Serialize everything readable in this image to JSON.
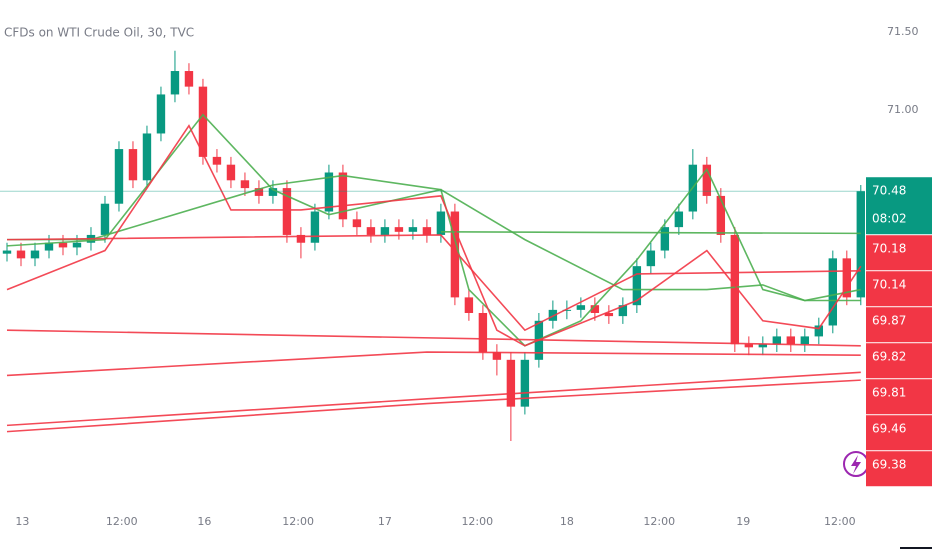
{
  "chart_data": {
    "type": "candlestick",
    "title": "CFDs on WTI Crude Oil, 30, TVC",
    "up_color": "#089981",
    "down_color": "#f23645",
    "xlim": [
      -0.5,
      61.3
    ],
    "ylim": [
      68.47,
      71.705
    ],
    "xticks": [
      {
        "value": 1.1,
        "label": "13"
      },
      {
        "value": 8.2,
        "label": "12:00"
      },
      {
        "value": 14.1,
        "label": "16"
      },
      {
        "value": 20.8,
        "label": "12:00"
      },
      {
        "value": 27,
        "label": "17"
      },
      {
        "value": 33.6,
        "label": "12:00"
      },
      {
        "value": 40,
        "label": "18"
      },
      {
        "value": 46.6,
        "label": "12:00"
      },
      {
        "value": 52.6,
        "label": "19"
      },
      {
        "value": 59.5,
        "label": "12:00"
      }
    ],
    "yticks": [
      {
        "value": 71.5,
        "label": "71.50"
      },
      {
        "value": 71,
        "label": "71.00"
      }
    ],
    "open": [
      70.08,
      70.1,
      70.05,
      70.1,
      70.15,
      70.12,
      70.15,
      70.2,
      70.4,
      70.75,
      70.55,
      70.85,
      71.1,
      71.25,
      71.15,
      70.7,
      70.65,
      70.55,
      70.5,
      70.45,
      70.5,
      70.2,
      70.15,
      70.35,
      70.6,
      70.3,
      70.25,
      70.2,
      70.25,
      70.22,
      70.25,
      70.2,
      70.35,
      69.8,
      69.7,
      69.45,
      69.4,
      69.1,
      69.4,
      69.65,
      69.72,
      69.72,
      69.75,
      69.7,
      69.68,
      69.75,
      70.0,
      70.1,
      70.25,
      70.35,
      70.65,
      70.45,
      70.2,
      69.5,
      69.48,
      69.5,
      69.55,
      69.5,
      69.55,
      69.62,
      70.05,
      69.8
    ],
    "high": [
      70.15,
      70.15,
      70.15,
      70.2,
      70.2,
      70.2,
      70.25,
      70.45,
      70.8,
      70.8,
      70.9,
      71.15,
      71.38,
      71.3,
      71.2,
      70.75,
      70.7,
      70.6,
      70.55,
      70.55,
      70.55,
      70.25,
      70.4,
      70.65,
      70.65,
      70.35,
      70.3,
      70.3,
      70.3,
      70.3,
      70.3,
      70.4,
      70.4,
      69.85,
      69.75,
      69.5,
      69.45,
      69.45,
      69.7,
      69.78,
      69.78,
      69.8,
      69.8,
      69.75,
      69.8,
      70.05,
      70.15,
      70.3,
      70.4,
      70.75,
      70.7,
      70.5,
      70.25,
      69.55,
      69.55,
      69.6,
      69.6,
      69.6,
      69.67,
      70.1,
      70.1,
      70.52
    ],
    "low": [
      70.03,
      70.0,
      70.0,
      70.05,
      70.07,
      70.07,
      70.1,
      70.15,
      70.35,
      70.5,
      70.5,
      70.8,
      71.05,
      71.1,
      70.65,
      70.6,
      70.5,
      70.45,
      70.4,
      70.4,
      70.15,
      70.05,
      70.1,
      70.3,
      70.25,
      70.2,
      70.15,
      70.15,
      70.17,
      70.17,
      70.15,
      70.15,
      69.75,
      69.65,
      69.4,
      69.3,
      68.88,
      69.05,
      69.35,
      69.6,
      69.66,
      69.67,
      69.65,
      69.63,
      69.63,
      69.7,
      69.95,
      70.05,
      70.2,
      70.3,
      70.4,
      70.15,
      69.45,
      69.43,
      69.43,
      69.45,
      69.45,
      69.45,
      69.5,
      69.57,
      69.75,
      69.75
    ],
    "close": [
      70.1,
      70.05,
      70.1,
      70.15,
      70.12,
      70.15,
      70.2,
      70.4,
      70.75,
      70.55,
      70.85,
      71.1,
      71.25,
      71.15,
      70.7,
      70.65,
      70.55,
      70.5,
      70.45,
      70.5,
      70.2,
      70.15,
      70.35,
      70.6,
      70.3,
      70.25,
      70.2,
      70.25,
      70.22,
      70.25,
      70.2,
      70.35,
      69.8,
      69.7,
      69.45,
      69.4,
      69.1,
      69.4,
      69.65,
      69.72,
      69.72,
      69.75,
      69.7,
      69.68,
      69.75,
      70.0,
      70.1,
      70.25,
      70.35,
      70.65,
      70.45,
      70.2,
      69.5,
      69.48,
      69.5,
      69.55,
      69.5,
      69.55,
      69.62,
      70.05,
      69.8,
      70.48
    ],
    "lines": [
      {
        "color": "#4caf50",
        "x": [
          0,
          7,
          14,
          19,
          23,
          31,
          33,
          37,
          41,
          45,
          50,
          54,
          57,
          61
        ],
        "values": [
          70.13,
          70.17,
          70.97,
          70.49,
          70.33,
          70.49,
          69.85,
          69.49,
          69.65,
          70.04,
          70.62,
          69.85,
          69.78,
          69.85
        ]
      },
      {
        "color": "#4caf50",
        "x": [
          0,
          6,
          19,
          24,
          31,
          37,
          44,
          50,
          54,
          57,
          61
        ],
        "values": [
          70.17,
          70.17,
          70.52,
          70.58,
          70.49,
          70.17,
          69.85,
          69.85,
          69.88,
          69.78,
          69.78
        ]
      },
      {
        "color": "#4caf50",
        "x": [
          31,
          61
        ],
        "values": [
          70.22,
          70.21
        ]
      },
      {
        "color": "#f23645",
        "x": [
          0,
          7,
          13,
          16,
          21,
          31,
          35,
          37,
          45,
          50,
          54,
          58,
          61
        ],
        "values": [
          69.85,
          70.1,
          70.9,
          70.36,
          70.36,
          70.45,
          69.59,
          69.49,
          69.78,
          70.1,
          69.65,
          69.6,
          70.0
        ]
      },
      {
        "color": "#f23645",
        "x": [
          0,
          31,
          37,
          45,
          61
        ],
        "values": [
          70.17,
          70.2,
          69.59,
          69.95,
          69.97
        ]
      },
      {
        "color": "#f23645",
        "x": [
          0,
          61
        ],
        "values": [
          69.59,
          69.49
        ]
      },
      {
        "color": "#f23645",
        "x": [
          0,
          30,
          61
        ],
        "values": [
          69.3,
          69.45,
          69.43
        ]
      },
      {
        "color": "#f23645",
        "x": [
          0,
          30,
          61
        ],
        "values": [
          68.98,
          69.15,
          69.32
        ]
      },
      {
        "color": "#f23645",
        "x": [
          0,
          30,
          61
        ],
        "values": [
          68.94,
          69.12,
          69.27
        ]
      }
    ],
    "price_tags": [
      {
        "value": 70.48,
        "label": "70.48",
        "countdown": "08:02",
        "color": "#089981"
      },
      {
        "value": 70.18,
        "label": "70.18",
        "color": "#f23645"
      },
      {
        "value": 70.14,
        "label": "70.14",
        "color": "#f23645"
      },
      {
        "value": 69.87,
        "label": "69.87",
        "color": "#f23645"
      },
      {
        "value": 69.82,
        "label": "69.82",
        "color": "#f23645"
      },
      {
        "value": 69.81,
        "label": "69.81",
        "color": "#f23645"
      },
      {
        "value": 69.46,
        "label": "69.46",
        "color": "#f23645"
      },
      {
        "value": 69.38,
        "label": "69.38",
        "color": "#f23645"
      }
    ]
  }
}
